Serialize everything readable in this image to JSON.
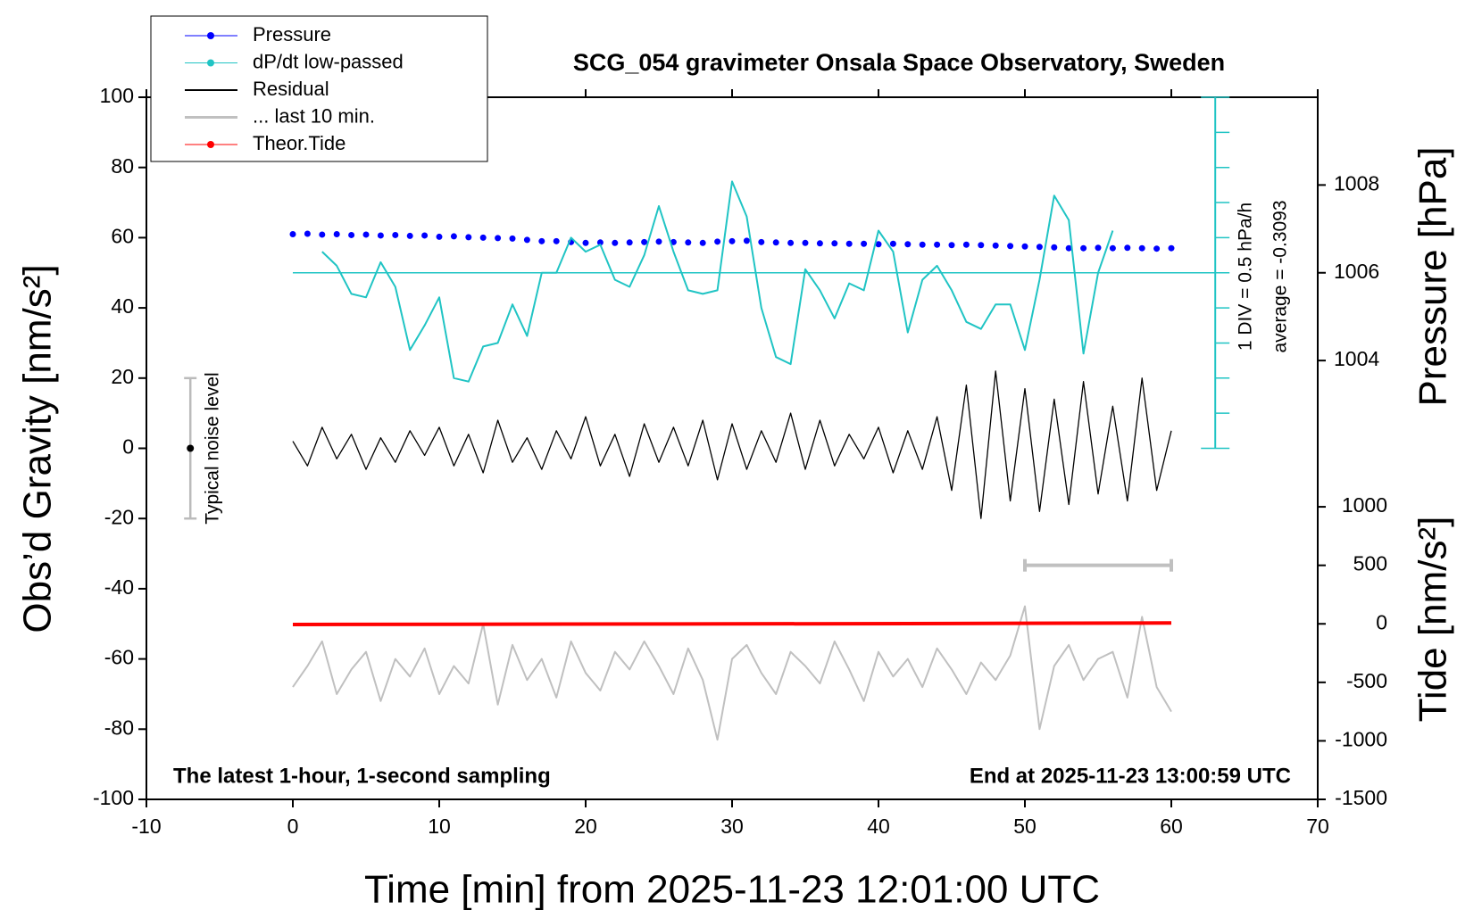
{
  "chart_data": {
    "type": "line",
    "title": "SCG_054 gravimeter Onsala Space Observatory, Sweden",
    "x_label": "Time [min] from 2025-11-23 12:01:00 UTC",
    "y_label": "Obs’d Gravity [nm/s²]",
    "y2_label": "Pressure [hPa]",
    "y3_label": "Tide [nm/s²]",
    "xlim": [
      -10,
      70
    ],
    "xticks": [
      -10,
      0,
      10,
      20,
      30,
      40,
      50,
      60,
      70
    ],
    "ylim": [
      -100,
      100
    ],
    "yticks": [
      -100,
      -80,
      -60,
      -40,
      -20,
      0,
      20,
      40,
      60,
      80,
      100
    ],
    "y2lim": [
      994,
      1010
    ],
    "y2ticks": [
      1004,
      1006,
      1008
    ],
    "y3lim": [
      -1500,
      4500
    ],
    "y3ticks": [
      -1500,
      -1000,
      -500,
      0,
      500,
      1000
    ],
    "legend": "upper left",
    "x": [
      0,
      1,
      2,
      3,
      4,
      5,
      6,
      7,
      8,
      9,
      10,
      11,
      12,
      13,
      14,
      15,
      16,
      17,
      18,
      19,
      20,
      21,
      22,
      23,
      24,
      25,
      26,
      27,
      28,
      29,
      30,
      31,
      32,
      33,
      34,
      35,
      36,
      37,
      38,
      39,
      40,
      41,
      42,
      43,
      44,
      45,
      46,
      47,
      48,
      49,
      50,
      51,
      52,
      53,
      54,
      55,
      56,
      57,
      58,
      59,
      60
    ],
    "series": [
      {
        "name": "Pressure",
        "color": "#0000ff",
        "axis": "y2",
        "marker": "dot",
        "values": [
          1006.88,
          1006.89,
          1006.87,
          1006.88,
          1006.86,
          1006.87,
          1006.85,
          1006.86,
          1006.84,
          1006.85,
          1006.82,
          1006.83,
          1006.81,
          1006.8,
          1006.79,
          1006.78,
          1006.75,
          1006.72,
          1006.72,
          1006.7,
          1006.68,
          1006.69,
          1006.68,
          1006.69,
          1006.7,
          1006.71,
          1006.7,
          1006.69,
          1006.68,
          1006.71,
          1006.72,
          1006.73,
          1006.7,
          1006.69,
          1006.68,
          1006.68,
          1006.67,
          1006.67,
          1006.66,
          1006.66,
          1006.65,
          1006.66,
          1006.65,
          1006.64,
          1006.64,
          1006.63,
          1006.64,
          1006.63,
          1006.62,
          1006.61,
          1006.6,
          1006.59,
          1006.58,
          1006.56,
          1006.56,
          1006.57,
          1006.56,
          1006.57,
          1006.56,
          1006.55,
          1006.56
        ]
      },
      {
        "name": "dP/dt low-passed",
        "color": "#20c4c4",
        "marker": "dot",
        "values": [
          null,
          null,
          56,
          52,
          44,
          43,
          53,
          46,
          28,
          35,
          43,
          20,
          19,
          29,
          30,
          41,
          32,
          50,
          50,
          60,
          56,
          58,
          48,
          46,
          55,
          69,
          56,
          45,
          44,
          45,
          76,
          66,
          40,
          26,
          24,
          51,
          45,
          37,
          47,
          45,
          62,
          56,
          33,
          48,
          52,
          45,
          36,
          34,
          41,
          41,
          28,
          48,
          72,
          65,
          27,
          50,
          62,
          null,
          null,
          null,
          null
        ]
      },
      {
        "name": "Residual",
        "color": "#000000",
        "values": [
          2,
          -5,
          6,
          -3,
          4,
          -6,
          3,
          -4,
          5,
          -2,
          6,
          -5,
          4,
          -7,
          8,
          -4,
          3,
          -6,
          5,
          -3,
          9,
          -5,
          4,
          -8,
          7,
          -4,
          6,
          -5,
          8,
          -9,
          7,
          -6,
          5,
          -4,
          10,
          -6,
          8,
          -5,
          4,
          -3,
          6,
          -7,
          5,
          -6,
          9,
          -12,
          18,
          -20,
          22,
          -15,
          17,
          -18,
          14,
          -16,
          19,
          -13,
          12,
          -15,
          20,
          -12,
          5
        ]
      },
      {
        "name": "... last 10 min.",
        "color": "#c0c0c0",
        "values": [
          -68,
          -62,
          -55,
          -70,
          -63,
          -58,
          -72,
          -60,
          -65,
          -57,
          -70,
          -62,
          -67,
          -50,
          -73,
          -56,
          -66,
          -60,
          -71,
          -55,
          -64,
          -69,
          -58,
          -63,
          -55,
          -62,
          -70,
          -57,
          -66,
          -83,
          -60,
          -56,
          -64,
          -70,
          -58,
          -62,
          -67,
          -55,
          -63,
          -72,
          -58,
          -65,
          -60,
          -68,
          -57,
          -63,
          -70,
          -61,
          -66,
          -59,
          -45,
          -80,
          -62,
          -56,
          -66,
          -60,
          -58,
          -71,
          -48,
          -68,
          -75
        ]
      },
      {
        "name": "Theor.Tide",
        "color": "#ff0000",
        "axis": "y3",
        "marker": "dot",
        "x": [
          0,
          15,
          30,
          45,
          60
        ],
        "values": [
          -6,
          -3,
          0,
          3,
          8
        ]
      }
    ],
    "last_10_min_bar": {
      "x": [
        50,
        60
      ],
      "value": 500
    },
    "noise_level": {
      "label": "Typical noise level",
      "x": -7,
      "values": [
        -20,
        0,
        20
      ]
    },
    "dpdt_scale": {
      "x": 63,
      "baseline": 50,
      "ticks": [
        0,
        10,
        20,
        30,
        40,
        50,
        60,
        70,
        80,
        90,
        100
      ],
      "div_label": "1 DIV = 0.5 hPa/h",
      "average_label": "average = -0.3093"
    },
    "annotations": {
      "bottom_left": "The latest 1-hour, 1-second sampling",
      "bottom_right": "End at 2025-11-23 13:00:59 UTC"
    }
  }
}
